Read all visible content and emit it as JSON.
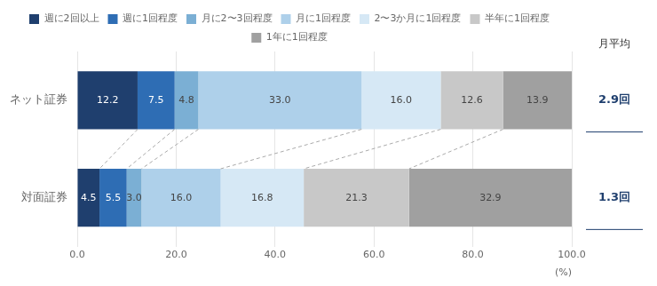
{
  "chart_data": {
    "type": "bar",
    "orientation": "horizontal",
    "stacked": true,
    "categories": [
      "ネット証券",
      "対面証券"
    ],
    "series": [
      {
        "name": "週に2回以上",
        "color": "#1f3f6e",
        "values": [
          12.2,
          4.5
        ],
        "value_labels": [
          "12.2",
          "4.5"
        ]
      },
      {
        "name": "週に1回程度",
        "color": "#2e6db4",
        "values": [
          7.5,
          5.5
        ],
        "value_labels": [
          "7.5",
          "5.5"
        ]
      },
      {
        "name": "月に2〜3回程度",
        "color": "#7bafd4",
        "values": [
          4.8,
          3.0
        ],
        "value_labels": [
          "4.8",
          "3.0"
        ]
      },
      {
        "name": "月に1回程度",
        "color": "#aed0ea",
        "values": [
          33.0,
          16.0
        ],
        "value_labels": [
          "33.0",
          "16.0"
        ]
      },
      {
        "name": "2〜3か月に1回程度",
        "color": "#d6e8f5",
        "values": [
          16.0,
          16.8
        ],
        "value_labels": [
          "16.0",
          "16.8"
        ]
      },
      {
        "name": "半年に1回程度",
        "color": "#c8c8c8",
        "values": [
          12.6,
          21.3
        ],
        "value_labels": [
          "12.6",
          "21.3"
        ]
      },
      {
        "name": "1年に1回程度",
        "color": "#a0a0a0",
        "values": [
          13.9,
          32.9
        ],
        "value_labels": [
          "13.9",
          "32.9"
        ]
      }
    ],
    "xlabel": "(%)",
    "xlim": [
      0,
      100
    ],
    "xticks": [
      {
        "value": 0,
        "label": "0.0"
      },
      {
        "value": 20,
        "label": "20.0"
      },
      {
        "value": 40,
        "label": "40.0"
      },
      {
        "value": 60,
        "label": "60.0"
      },
      {
        "value": 80,
        "label": "80.0"
      },
      {
        "value": 100,
        "label": "100.0"
      }
    ],
    "grid": true,
    "legend": "top",
    "data_labels": true,
    "annotations": [
      {
        "text": "月平均"
      },
      {
        "text": "2.9回",
        "category": "ネット証券"
      },
      {
        "text": "1.3回",
        "category": "対面証券"
      }
    ]
  }
}
